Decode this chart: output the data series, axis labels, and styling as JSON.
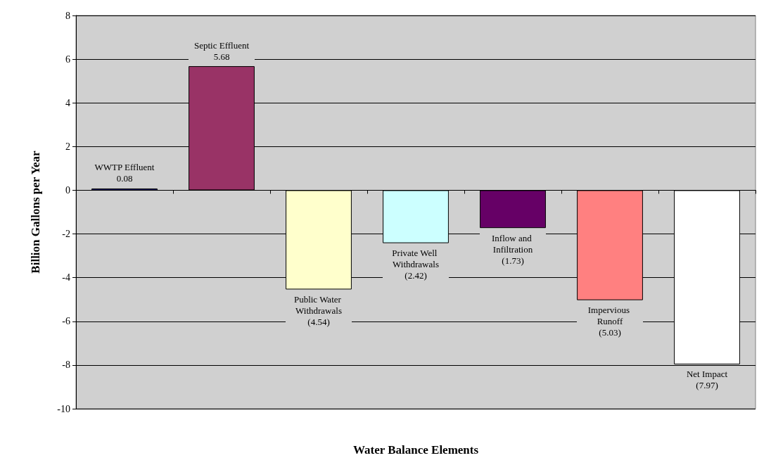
{
  "chart_data": {
    "type": "bar",
    "xlabel": "Water Balance Elements",
    "ylabel": "Billion Gallons per Year",
    "categories": [
      "WWTP Effluent",
      "Septic Effluent",
      "Public Water Withdrawals",
      "Private Well Withdrawals",
      "Inflow and Infiltration",
      "Impervious Runoff",
      "Net Impact"
    ],
    "values": [
      0.08,
      5.68,
      -4.54,
      -2.42,
      -1.73,
      -5.03,
      -7.97
    ],
    "colors": [
      "#3333cc",
      "#993366",
      "#ffffcc",
      "#ccffff",
      "#660066",
      "#ff8080",
      "#ffffff"
    ],
    "value_labels": [
      "0.08",
      "5.68",
      "(4.54)",
      "(2.42)",
      "(1.73)",
      "(5.03)",
      "(7.97)"
    ],
    "ylim": [
      -10,
      8
    ],
    "yticks": [
      -10,
      -8,
      -6,
      -4,
      -2,
      0,
      2,
      4,
      6,
      8
    ],
    "grid": "y",
    "tick_labels": "y"
  }
}
